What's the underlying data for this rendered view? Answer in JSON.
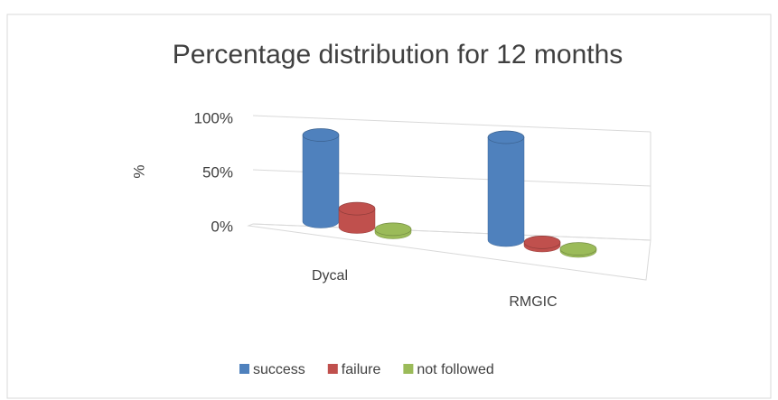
{
  "chart_data": {
    "type": "bar3d",
    "title": "Percentage distribution for 12 months",
    "y_label": "%",
    "categories": [
      "Dycal",
      "RMGIC"
    ],
    "series": [
      {
        "name": "success",
        "color": "#4f81bd",
        "values": [
          80,
          95
        ]
      },
      {
        "name": "failure",
        "color": "#c0504d",
        "values": [
          17,
          3
        ]
      },
      {
        "name": "not followed",
        "color": "#9bbb59",
        "values": [
          3,
          2
        ]
      }
    ],
    "ylim": [
      0,
      100
    ],
    "yticks": [
      {
        "value": 0,
        "label": "0%"
      },
      {
        "value": 50,
        "label": "50%"
      },
      {
        "value": 100,
        "label": "100%"
      }
    ],
    "grid": true,
    "legend": "bottom"
  }
}
